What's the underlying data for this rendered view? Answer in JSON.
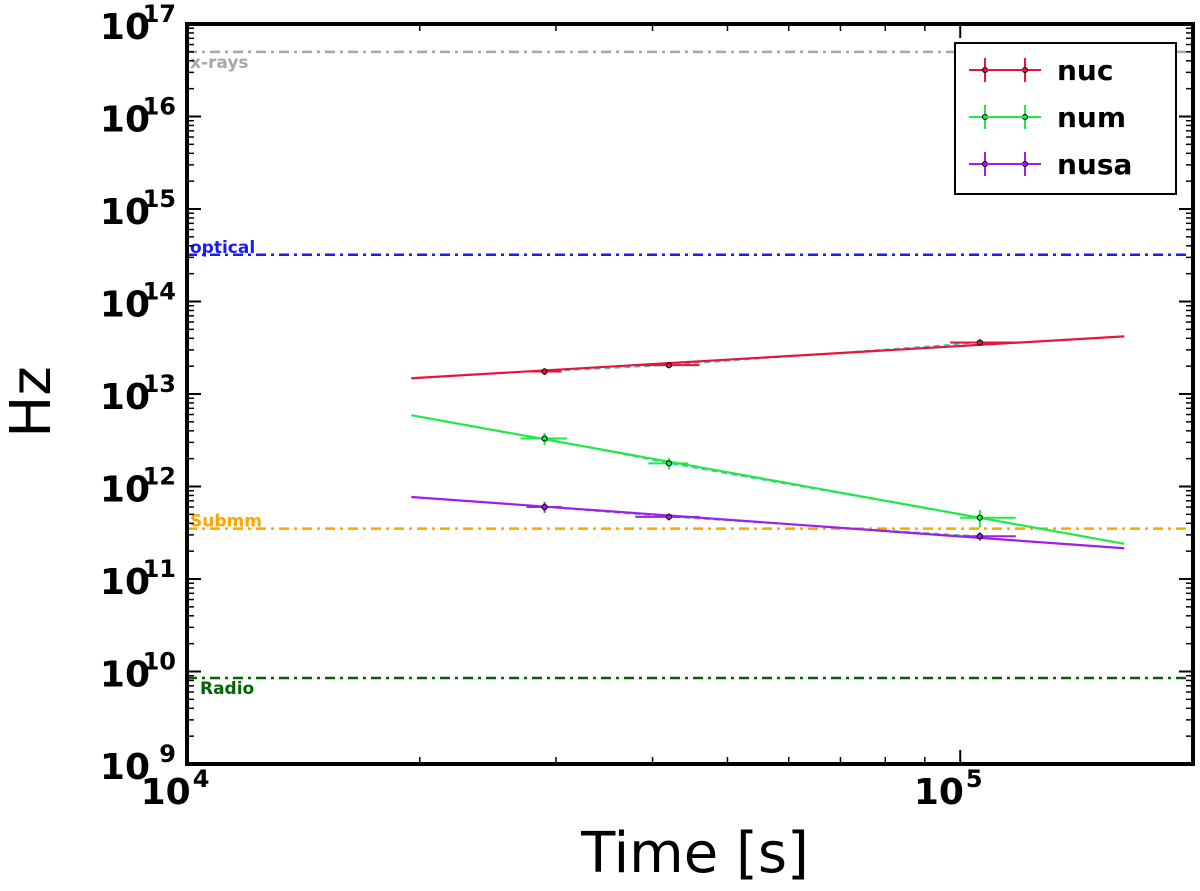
{
  "chart_data": {
    "type": "line",
    "xlabel": "Time [s]",
    "ylabel": "Hz",
    "x_scale": "log",
    "y_scale": "log",
    "xlim": [
      10000,
      200000
    ],
    "ylim": [
      1000000000,
      100000000000000000
    ],
    "x_ticks": [
      {
        "value": 10000,
        "base": "10",
        "exp": "4"
      },
      {
        "value": 100000,
        "base": "10",
        "exp": "5"
      }
    ],
    "y_ticks": [
      {
        "value": 1000000000.0,
        "base": "10",
        "exp": "9"
      },
      {
        "value": 10000000000.0,
        "base": "10",
        "exp": "10"
      },
      {
        "value": 100000000000.0,
        "base": "10",
        "exp": "11"
      },
      {
        "value": 1000000000000.0,
        "base": "10",
        "exp": "12"
      },
      {
        "value": 10000000000000.0,
        "base": "10",
        "exp": "13"
      },
      {
        "value": 100000000000000.0,
        "base": "10",
        "exp": "14"
      },
      {
        "value": 1000000000000000.0,
        "base": "10",
        "exp": "15"
      },
      {
        "value": 1e+16,
        "base": "10",
        "exp": "16"
      },
      {
        "value": 1e+17,
        "base": "10",
        "exp": "17"
      }
    ],
    "reference_lines": [
      {
        "label": "x-rays",
        "y": 5e+16,
        "color": "#a8a8a8"
      },
      {
        "label": "optical",
        "y": 320000000000000.0,
        "color": "#1a1aff"
      },
      {
        "label": "Submm",
        "y": 350000000000.0,
        "color": "#ffa500"
      },
      {
        "label": "Radio",
        "y": 8500000000.0,
        "color": "#006400"
      }
    ],
    "series": [
      {
        "name": "nuc",
        "color": "#e8143c",
        "points": [
          {
            "x": 29000,
            "y": 17500000000000.0,
            "xerr": [
              1500,
              1500
            ],
            "yerr": [
              1500000000000.0,
              1500000000000.0
            ]
          },
          {
            "x": 42000,
            "y": 20500000000000.0,
            "xerr": [
              4000,
              4000
            ],
            "yerr": [
              1500000000000.0,
              1500000000000.0
            ]
          },
          {
            "x": 106000,
            "y": 36000000000000.0,
            "xerr": [
              9000,
              13000
            ],
            "yerr": [
              3000000000000.0,
              3000000000000.0
            ]
          }
        ],
        "fit": [
          {
            "x": 19500,
            "y": 14800000000000.0
          },
          {
            "x": 163000,
            "y": 42000000000000.0
          }
        ]
      },
      {
        "name": "num",
        "color": "#22e846",
        "points": [
          {
            "x": 29000,
            "y": 3300000000000.0,
            "xerr": [
              2000,
              2000
            ],
            "yerr": [
              500000000000.0,
              500000000000.0
            ]
          },
          {
            "x": 42000,
            "y": 1780000000000.0,
            "xerr": [
              2500,
              2500
            ],
            "yerr": [
              250000000000.0,
              250000000000.0
            ]
          },
          {
            "x": 106000,
            "y": 460000000000.0,
            "xerr": [
              6000,
              12000
            ],
            "yerr": [
              100000000000.0,
              100000000000.0
            ]
          }
        ],
        "fit": [
          {
            "x": 19500,
            "y": 5900000000000.0
          },
          {
            "x": 163000,
            "y": 240000000000.0
          }
        ]
      },
      {
        "name": "nusa",
        "color": "#a01ee8",
        "points": [
          {
            "x": 29000,
            "y": 600000000000.0,
            "xerr": [
              1500,
              1500
            ],
            "yerr": [
              80000000000.0,
              80000000000.0
            ]
          },
          {
            "x": 42000,
            "y": 470000000000.0,
            "xerr": [
              4000,
              4000
            ],
            "yerr": [
              40000000000.0,
              40000000000.0
            ]
          },
          {
            "x": 106000,
            "y": 290000000000.0,
            "xerr": [
              6000,
              12000
            ],
            "yerr": [
              30000000000.0,
              30000000000.0
            ]
          }
        ],
        "fit": [
          {
            "x": 19500,
            "y": 770000000000.0
          },
          {
            "x": 163000,
            "y": 215000000000.0
          }
        ]
      }
    ],
    "legend": {
      "placement": "top-right"
    },
    "grid": false
  }
}
